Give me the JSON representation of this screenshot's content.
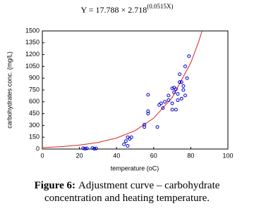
{
  "chart_data": {
    "type": "scatter",
    "title": "Y = 17.788 × 2.718",
    "title_exponent": "(0.0515X)",
    "xlabel": "temperature (oC)",
    "ylabel": "carbohydrates conc. (mg/L)",
    "xlim": [
      0,
      100
    ],
    "xticks": [
      0,
      20,
      40,
      60,
      80,
      100
    ],
    "ylim": [
      0,
      1500
    ],
    "yticks": [
      0,
      150,
      300,
      450,
      600,
      750,
      900,
      1050,
      1200,
      1350,
      1500
    ],
    "grid": false,
    "marker_color": "#0000cc",
    "x": [
      22,
      23,
      24,
      27,
      28,
      29,
      44,
      45,
      46,
      46,
      47,
      48,
      55,
      55,
      57,
      57,
      57,
      62,
      63,
      64,
      65,
      66,
      68,
      68,
      70,
      70,
      70,
      71,
      71,
      72,
      72,
      73,
      73,
      74,
      74,
      75,
      75,
      76,
      76,
      77,
      77,
      78,
      79
    ],
    "values": [
      10,
      5,
      8,
      12,
      5,
      8,
      60,
      100,
      40,
      150,
      130,
      150,
      280,
      310,
      690,
      480,
      450,
      280,
      560,
      580,
      520,
      600,
      680,
      620,
      580,
      500,
      770,
      780,
      720,
      500,
      760,
      700,
      620,
      850,
      950,
      640,
      850,
      750,
      800,
      1050,
      680,
      900,
      1180
    ],
    "fit": {
      "color": "#e02020",
      "x": [
        0,
        10,
        20,
        30,
        40,
        50,
        60,
        70,
        80,
        84,
        86.1
      ],
      "values": [
        17.8,
        29.8,
        49.9,
        83.5,
        139.7,
        233.8,
        391.3,
        654.8,
        1095.8,
        1346.5,
        1500
      ]
    }
  },
  "caption": {
    "label": "Figure 6:",
    "line1": "Adjustment curve – carbohydrate",
    "line2": "concentration and heating temperature."
  }
}
